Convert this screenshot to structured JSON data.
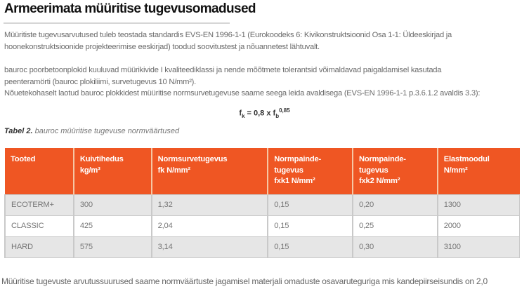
{
  "title": "Armeerimata müüritise tugevusomadused",
  "paragraphs": {
    "p1_l1": "Müüritiste tugevusarvutused tuleb teostada standardis EVS-EN 1996-1-1 (Eurokoodeks 6: Kivikonstruktsioonid Osa 1-1: Üldeeskirjad ja",
    "p1_l2": "hoonekonstruktsioonide projekteerimise eeskirjad) toodud soovitustest ja nõuannetest lähtuvalt.",
    "p2_l1": "bauroc poorbetoonplokid kuuluvad müürikivide I kvaliteediklassi ja nende mõõtmete tolerantsid võimaldavad paigaldamisel kasutada",
    "p2_l2": "peenteramörti (bauroc plokiliimi, survetugevus 10 N/mm²).",
    "p2_l3": "Nõuetekohaselt laotud bauroc plokkidest müüritise normsurvetugevuse saame seega leida avaldisega (EVS-EN 1996-1-1 p.3.6.1.2 avaldis 3.3):"
  },
  "formula": {
    "lhs": "f",
    "lhs_sub": "k",
    "mid": " = 0,8 x f",
    "rhs_sub": "b",
    "rhs_sup": "0,85"
  },
  "caption": {
    "label": "Tabel 2.",
    "text": " bauroc müüritise tugevuse normväärtused"
  },
  "table": {
    "header_color": "#ef5623",
    "headers": [
      [
        "Tooted"
      ],
      [
        "Kuivtihedus",
        "kg/m³"
      ],
      [
        "Normsurvetugevus",
        "fk N/mm²"
      ],
      [
        "Normpainde-",
        "tugevus",
        "fxk1 N/mm²"
      ],
      [
        "Normpainde-",
        "tugevus",
        "fxk2 N/mm²"
      ],
      [
        "Elastmoodul",
        "N/mm²"
      ]
    ],
    "rows": [
      [
        "ECOTERM+",
        "300",
        "1,32",
        "0,15",
        "0,20",
        "1300"
      ],
      [
        "CLASSIC",
        "425",
        "2,04",
        "0,15",
        "0,25",
        "2000"
      ],
      [
        "HARD",
        "575",
        "3,14",
        "0,15",
        "0,30",
        "3100"
      ]
    ]
  },
  "footer_text": "Müüritise tugevuste arvutussuurused saame normväärtuste jagamisel materjali omaduste osavaruteguriga mis kandepiirseisundis on 2,0"
}
